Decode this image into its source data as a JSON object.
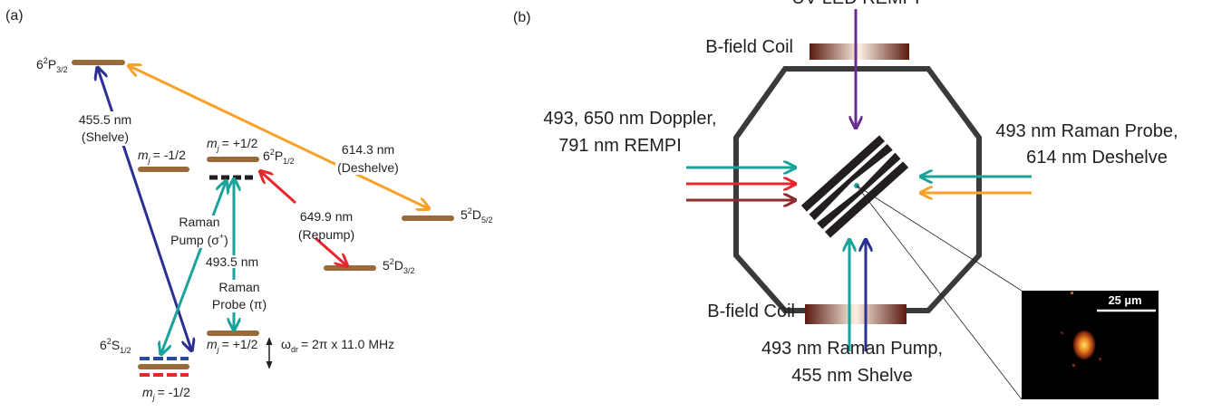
{
  "panel_a": {
    "label": "(a)",
    "states": {
      "p32": {
        "n": "6",
        "mult": "2",
        "term": "P",
        "j": "3/2"
      },
      "p12": {
        "n": "6",
        "mult": "2",
        "term": "P",
        "j": "1/2"
      },
      "d52": {
        "n": "5",
        "mult": "2",
        "term": "D",
        "j": "5/2"
      },
      "d32": {
        "n": "5",
        "mult": "2",
        "term": "D",
        "j": "3/2"
      },
      "s12": {
        "n": "6",
        "mult": "2",
        "term": "S",
        "j": "1/2"
      }
    },
    "m_labels": [
      {
        "symbol": "m",
        "sub": "j",
        "value": "= -1/2"
      },
      {
        "symbol": "m",
        "sub": "j",
        "value": "= +1/2"
      },
      {
        "symbol": "m",
        "sub": "j",
        "value": "= +1/2"
      },
      {
        "symbol": "m",
        "sub": "j",
        "value": "= -1/2"
      }
    ],
    "transitions": {
      "shelve": {
        "wavelength": "455.5 nm",
        "name": "(Shelve)"
      },
      "deshelve": {
        "wavelength": "614.3 nm",
        "name": "(Deshelve)"
      },
      "repump": {
        "wavelength": "649.9 nm",
        "name": "(Repump)"
      },
      "raman_pump": {
        "line1": "Raman",
        "line2": "Pump (σ",
        "sup": "+",
        "close": ")"
      },
      "raman_probe": {
        "wavelength": "493.5 nm",
        "line1": "Raman",
        "line2": "Probe (π)"
      }
    },
    "splitting": {
      "symbol": "ω",
      "sub": "dr",
      "value": "= 2π x 11.0 MHz"
    }
  },
  "panel_b": {
    "label": "(b)",
    "top_beam": "UV-LED REMPI",
    "coil_top": "B-field Coil",
    "coil_bottom": "B-field Coil",
    "left_beams": [
      "493, 650 nm Doppler,",
      "791 nm REMPI"
    ],
    "right_beams": [
      "493 nm Raman Probe,",
      "614 nm Deshelve"
    ],
    "bottom_beams": [
      "493 nm Raman Pump,",
      "455 nm Shelve"
    ],
    "scale_bar": "25 µm"
  }
}
